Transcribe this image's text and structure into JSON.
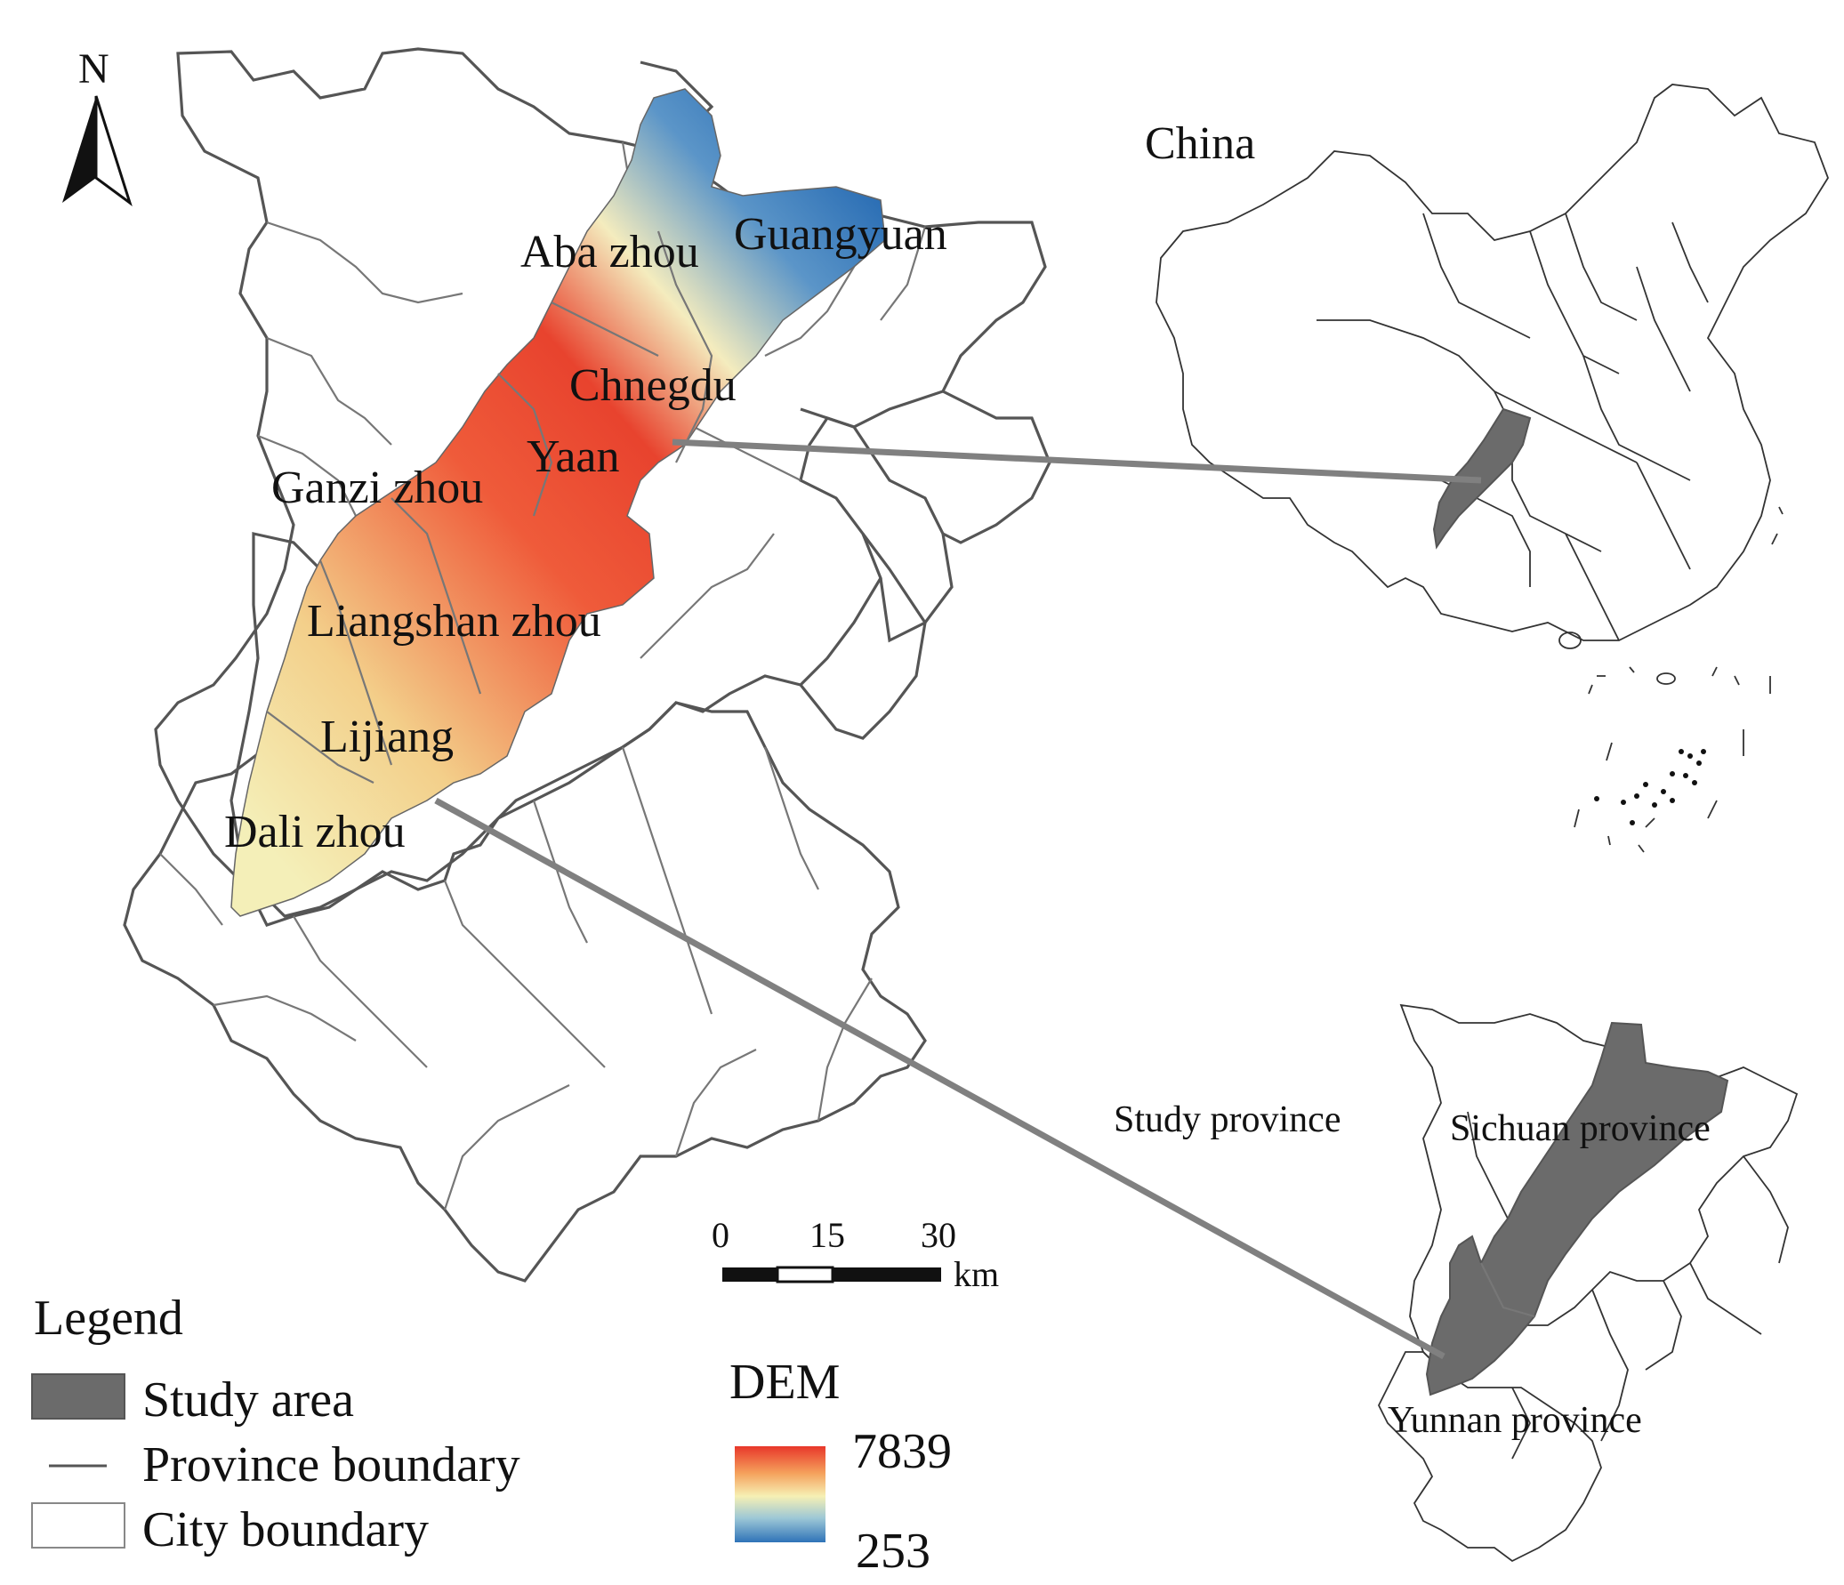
{
  "north_arrow": {
    "label": "N"
  },
  "main_map": {
    "labels": {
      "aba": "Aba zhou",
      "guangyuan": "Guangyuan",
      "chengdu": "Chnegdu",
      "yaan": "Yaan",
      "ganzi": "Ganzi zhou",
      "liangshan": "Liangshan zhou",
      "lijiang": "Lijiang",
      "dali": "Dali zhou"
    }
  },
  "scale_bar": {
    "ticks": [
      "0",
      "15",
      "30"
    ],
    "unit": "km"
  },
  "china_inset": {
    "title": "China"
  },
  "province_inset": {
    "title": "Study province",
    "sichuan": "Sichuan province",
    "yunnan": "Yunnan province"
  },
  "legend": {
    "title": "Legend",
    "items": [
      {
        "label": "Study area",
        "color": "#6b6b6b"
      },
      {
        "label": "Province boundary",
        "color": "#555555"
      },
      {
        "label": "City boundary",
        "color": "#ffffff"
      }
    ]
  },
  "dem_legend": {
    "title": "DEM",
    "max": "7839",
    "min": "253",
    "colors": {
      "high": "#e8372a",
      "mid": "#f6f0b4",
      "low": "#2f73b8"
    }
  },
  "colors": {
    "study_area": "#6b6b6b",
    "connector": "#808080"
  }
}
